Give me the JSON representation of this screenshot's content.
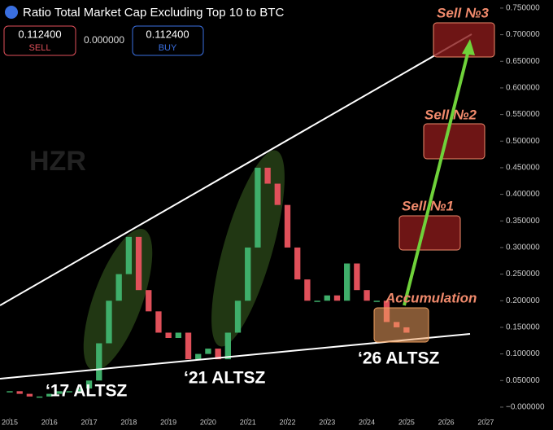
{
  "header": {
    "title": "Ratio Total Market Cap Excluding Top 10 to BTC",
    "sell_price": "0.112400",
    "sell_label": "SELL",
    "spread": "0.000000",
    "buy_price": "0.112400",
    "buy_label": "BUY",
    "watermark": "HZR"
  },
  "annotations": {
    "sell3": "Sell №3",
    "sell2": "Sell №2",
    "sell1": "Sell №1",
    "accumulation": "Accumulation",
    "alt17": "‘17 ALTSZ",
    "alt21": "‘21 ALTSZ",
    "alt26": "‘26 ALTSZ"
  },
  "chart_data": {
    "type": "candlestick",
    "up_color": "#3fae6a",
    "down_color": "#e0505a",
    "x": [
      2015,
      2015.25,
      2015.5,
      2015.75,
      2016,
      2016.25,
      2016.5,
      2016.75,
      2017,
      2017.25,
      2017.5,
      2017.75,
      2018,
      2018.25,
      2018.5,
      2018.75,
      2019,
      2019.25,
      2019.5,
      2019.75,
      2020,
      2020.25,
      2020.5,
      2020.75,
      2021,
      2021.25,
      2021.5,
      2021.75,
      2022,
      2022.25,
      2022.5,
      2022.75,
      2023,
      2023.25,
      2023.5,
      2023.75,
      2024,
      2024.25,
      2024.5,
      2024.75,
      2025
    ],
    "values": [
      0.03,
      0.025,
      0.02,
      0.02,
      0.025,
      0.03,
      0.03,
      0.035,
      0.05,
      0.12,
      0.2,
      0.25,
      0.32,
      0.22,
      0.18,
      0.14,
      0.13,
      0.14,
      0.09,
      0.1,
      0.11,
      0.09,
      0.14,
      0.2,
      0.3,
      0.45,
      0.42,
      0.38,
      0.3,
      0.24,
      0.2,
      0.2,
      0.21,
      0.2,
      0.27,
      0.22,
      0.2,
      0.2,
      0.16,
      0.15,
      0.14
    ],
    "xlim": [
      2014.754,
      2027.36
    ],
    "xticks": [
      2015,
      2016,
      2017,
      2018,
      2019,
      2020,
      2021,
      2022,
      2023,
      2024,
      2025,
      2026,
      2027
    ],
    "ylim": [
      -0.02,
      0.76
    ],
    "yticks": [
      {
        "value": 0.75,
        "label": "0.750000"
      },
      {
        "value": 0.7,
        "label": "0.700000"
      },
      {
        "value": 0.65,
        "label": "0.650000"
      },
      {
        "value": 0.6,
        "label": "0.600000"
      },
      {
        "value": 0.55,
        "label": "0.550000"
      },
      {
        "value": 0.5,
        "label": "0.500000"
      },
      {
        "value": 0.45,
        "label": "0.450000"
      },
      {
        "value": 0.4,
        "label": "0.400000"
      },
      {
        "value": 0.35,
        "label": "0.350000"
      },
      {
        "value": 0.3,
        "label": "0.300000"
      },
      {
        "value": 0.25,
        "label": "0.250000"
      },
      {
        "value": 0.2,
        "label": "0.200000"
      },
      {
        "value": 0.15,
        "label": "0.150000"
      },
      {
        "value": 0.1,
        "label": "0.100000"
      },
      {
        "value": 0.05,
        "label": "0.050000"
      },
      {
        "value": 0,
        "label": "−0.000000"
      }
    ]
  }
}
